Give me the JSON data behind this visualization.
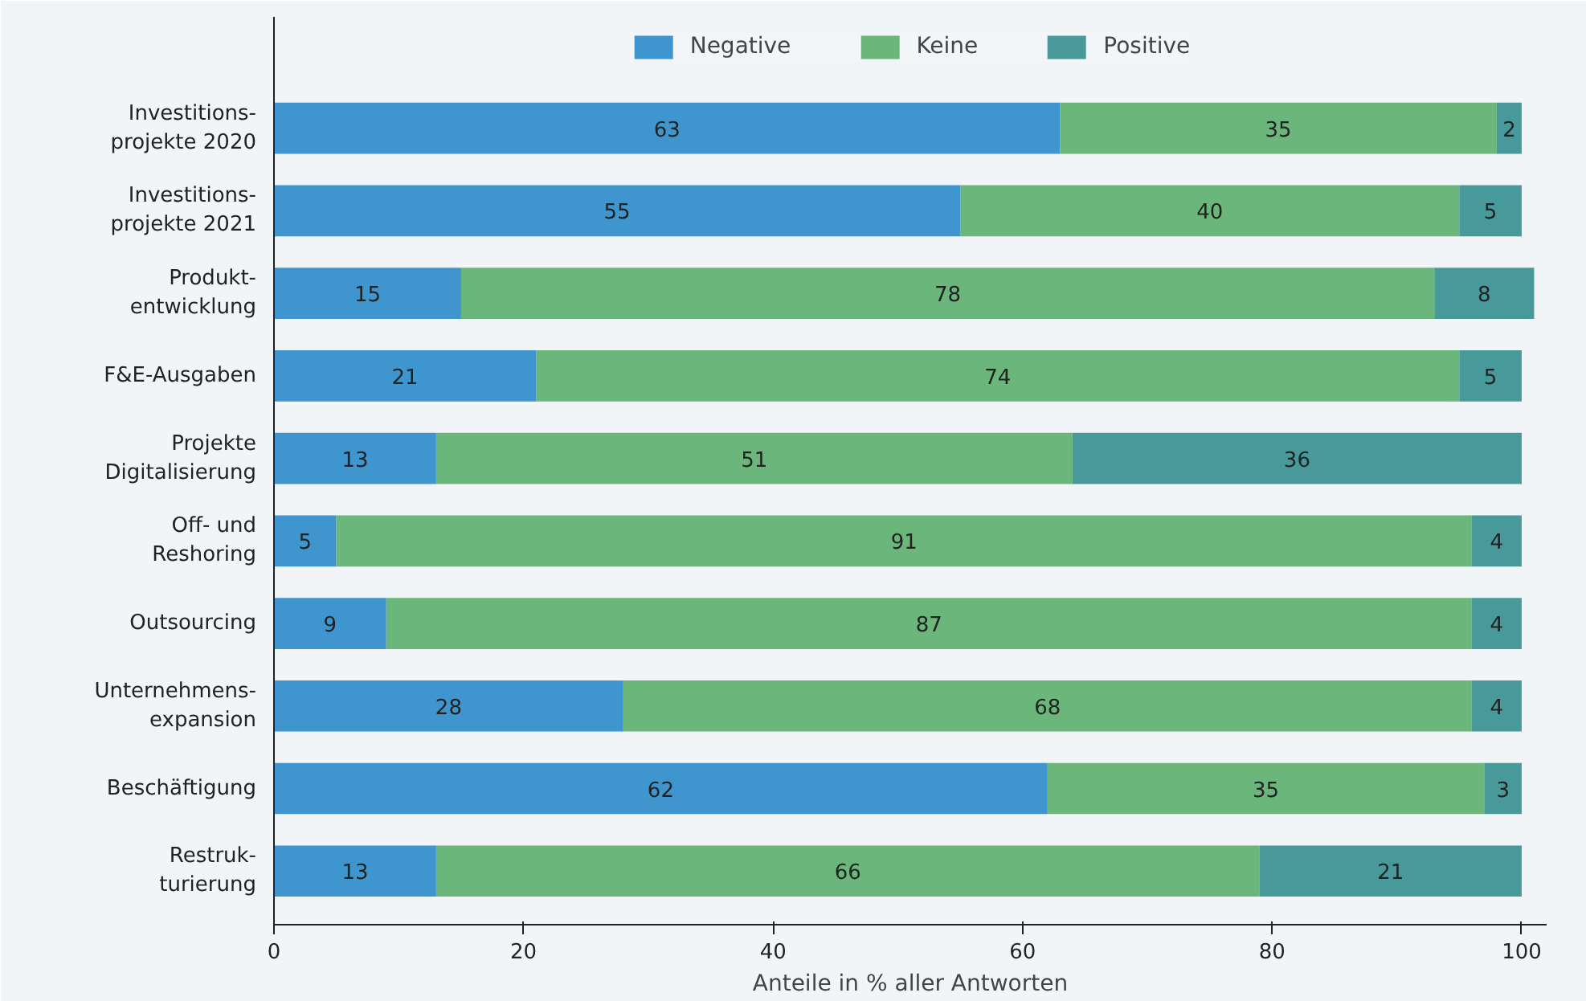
{
  "chart_data": {
    "type": "bar",
    "orientation": "horizontal",
    "stacked": true,
    "data_labels": true,
    "categories": [
      "Investitions-\nprojekte 2020",
      "Investitions-\nprojekte 2021",
      "Produkt-\nentwicklung",
      "F&E-Ausgaben",
      "Projekte\nDigitalisierung",
      "Off- und\nReshoring",
      "Outsourcing",
      "Unternehmens-\nexpansion",
      "Beschäftigung",
      "Restruk-\nturierung"
    ],
    "series": [
      {
        "name": "Negative",
        "color": "#3f96cf",
        "values": [
          63,
          55,
          15,
          21,
          13,
          5,
          9,
          28,
          62,
          13
        ]
      },
      {
        "name": "Keine",
        "color": "#6bb67b",
        "values": [
          35,
          40,
          78,
          74,
          51,
          91,
          87,
          68,
          35,
          66
        ]
      },
      {
        "name": "Positive",
        "color": "#48999a",
        "values": [
          2,
          5,
          8,
          5,
          36,
          4,
          4,
          4,
          3,
          21
        ]
      }
    ],
    "xlim": [
      0,
      102
    ],
    "xticks": [
      0,
      20,
      40,
      60,
      80,
      100
    ],
    "xlabel": "Anteile in % aller Antworten",
    "legend": "top",
    "grid": false
  }
}
